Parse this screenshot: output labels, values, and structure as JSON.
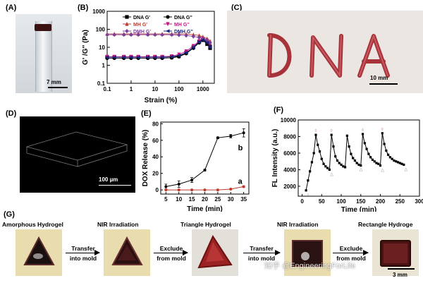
{
  "panels": {
    "A": {
      "label": "(A)",
      "scale_bar": "7 mm"
    },
    "B": {
      "label": "(B)"
    },
    "C": {
      "label": "(C)",
      "scale_bar": "10 mm",
      "written_text": "DNA"
    },
    "D": {
      "label": "(D)",
      "scale_bar": "100 µm"
    },
    "E": {
      "label": "(E)"
    },
    "F": {
      "label": "(F)"
    },
    "G": {
      "label": "(G)",
      "steps": [
        "Amorphous Hydrogel",
        "NIR Irradiation",
        "Triangle Hydrogel",
        "NIR Irradiation",
        "Rectangle Hydroge"
      ],
      "transitions": [
        {
          "line1": "Transfer",
          "line2": "into mold"
        },
        {
          "line1": "Exclude",
          "line2": "from mold"
        },
        {
          "line1": "Transfer",
          "line2": "into mold"
        },
        {
          "line1": "Exclude",
          "line2": "from mold"
        }
      ],
      "scale_bar": "3 mm",
      "watermark": "知乎 @EngineeringForLife"
    }
  },
  "chart_data": [
    {
      "id": "B",
      "type": "line",
      "xlabel": "Strain (%)",
      "ylabel": "G' /G'' (Pa)",
      "xscale": "log",
      "yscale": "log",
      "xlim": [
        0.1,
        3000
      ],
      "ylim": [
        0.1,
        1000
      ],
      "x_ticks": [
        "0.1",
        "1",
        "10",
        "100",
        "1000"
      ],
      "y_ticks": [
        "0.1",
        "1",
        "10",
        "100",
        "1000"
      ],
      "legend_position": "top",
      "series": [
        {
          "name": "DNA G'",
          "color": "#000000",
          "marker": "square",
          "x": [
            0.1,
            0.2,
            0.5,
            1,
            2,
            5,
            10,
            20,
            50,
            100,
            200,
            400,
            700,
            1000,
            1500,
            2000
          ],
          "y": [
            2.8,
            2.8,
            2.8,
            2.8,
            2.8,
            2.8,
            2.8,
            2.8,
            2.9,
            3.2,
            5,
            10,
            20,
            25,
            15,
            9
          ]
        },
        {
          "name": "DNA G''",
          "color": "#000000",
          "marker": "circle",
          "x": [
            0.1,
            0.2,
            0.5,
            1,
            2,
            5,
            10,
            20,
            50,
            100,
            200,
            400,
            700,
            1000,
            1500,
            2000
          ],
          "y": [
            2.5,
            2.5,
            2.5,
            2.5,
            2.5,
            2.5,
            2.5,
            2.5,
            2.6,
            3,
            4.5,
            9,
            18,
            28,
            20,
            12
          ]
        },
        {
          "name": "MH G'",
          "color": "#c0392b",
          "marker": "triangle-up",
          "x": [
            0.1,
            0.2,
            0.5,
            1,
            2,
            5,
            10,
            20,
            50,
            100,
            200,
            400,
            700,
            1000,
            1500,
            2000
          ],
          "y": [
            55,
            55,
            55,
            55,
            55,
            55,
            55,
            55,
            55,
            55,
            54,
            50,
            45,
            38,
            30,
            22
          ]
        },
        {
          "name": "MH G''",
          "color": "#c71585",
          "marker": "triangle-down",
          "x": [
            0.1,
            0.2,
            0.5,
            1,
            2,
            5,
            10,
            20,
            50,
            100,
            200,
            400,
            700,
            1000,
            1500,
            2000
          ],
          "y": [
            3,
            3,
            3,
            3,
            3,
            3,
            3,
            3,
            3.2,
            4,
            6,
            12,
            22,
            30,
            24,
            15
          ]
        },
        {
          "name": "DMH G'",
          "color": "#7b3fa0",
          "marker": "diamond",
          "x": [
            0.1,
            0.2,
            0.5,
            1,
            2,
            5,
            10,
            20,
            50,
            100,
            200,
            400,
            700,
            1000,
            1500,
            2000
          ],
          "y": [
            50,
            50,
            50,
            50,
            50,
            50,
            50,
            50,
            50,
            48,
            45,
            40,
            35,
            30,
            25,
            18
          ]
        },
        {
          "name": "DMH G''",
          "color": "#1a237e",
          "marker": "left-triangle",
          "x": [
            0.1,
            0.2,
            0.5,
            1,
            2,
            5,
            10,
            20,
            50,
            100,
            200,
            400,
            700,
            1000,
            1500,
            2000
          ],
          "y": [
            2.8,
            2.8,
            2.8,
            2.8,
            2.8,
            2.8,
            2.8,
            2.8,
            3,
            3.5,
            5,
            10,
            20,
            26,
            18,
            10
          ]
        }
      ]
    },
    {
      "id": "E",
      "type": "line",
      "xlabel": "Time (min)",
      "ylabel": "DOX Release (%)",
      "xlim": [
        3,
        37
      ],
      "ylim": [
        -5,
        82
      ],
      "x_ticks": [
        5,
        10,
        15,
        20,
        25,
        30,
        35
      ],
      "y_ticks": [
        0,
        20,
        40,
        60,
        80
      ],
      "series": [
        {
          "name": "b",
          "color": "#000000",
          "x": [
            5,
            10,
            15,
            20,
            25,
            30,
            35
          ],
          "y": [
            4,
            7,
            12,
            24,
            63,
            65,
            69
          ],
          "err": [
            3,
            4,
            3,
            1,
            1,
            2,
            5
          ]
        },
        {
          "name": "a",
          "color": "#c0392b",
          "x": [
            5,
            10,
            15,
            20,
            25,
            30,
            35
          ],
          "y": [
            0,
            0,
            0,
            0,
            0,
            1,
            4
          ],
          "err": [
            0,
            0,
            0,
            0,
            0,
            0,
            1
          ]
        }
      ]
    },
    {
      "id": "F",
      "type": "line",
      "xlabel": "Time (min)",
      "ylabel": "FL Intensity (a.u.)",
      "xlim": [
        -10,
        300
      ],
      "ylim": [
        800,
        10000
      ],
      "x_ticks": [
        "0",
        "50",
        "100",
        "150",
        "200",
        "250",
        "300"
      ],
      "y_ticks": [
        "2000",
        "4000",
        "6000",
        "8000",
        "10000"
      ],
      "series": [
        {
          "name": "FL",
          "color": "#000000",
          "x": [
            10,
            15,
            20,
            25,
            30,
            35,
            40,
            45,
            50,
            55,
            60,
            65,
            70,
            75,
            80,
            85,
            90,
            95,
            100,
            105,
            110,
            115,
            120,
            125,
            130,
            135,
            140,
            145,
            150,
            155,
            160,
            165,
            170,
            175,
            180,
            185,
            190,
            195,
            200,
            205,
            210,
            215,
            220,
            225,
            230,
            235,
            240,
            245,
            250,
            255,
            260
          ],
          "y": [
            1500,
            2700,
            3800,
            4900,
            6000,
            8200,
            7000,
            6200,
            5300,
            4700,
            4400,
            4200,
            4000,
            8200,
            6800,
            5600,
            5100,
            4800,
            4600,
            4400,
            4300,
            8100,
            6800,
            5900,
            5400,
            5100,
            4800,
            4600,
            4500,
            8300,
            7200,
            6500,
            5900,
            5500,
            5200,
            5000,
            4800,
            4700,
            4500,
            8400,
            7100,
            6300,
            5800,
            5500,
            5300,
            5100,
            5000,
            4900,
            4800,
            4700,
            4600
          ]
        }
      ],
      "peak_markers": [
        "◊",
        "◊",
        "◊",
        "◊"
      ],
      "trough_markers": [
        "△",
        "△",
        "△",
        "△",
        "△"
      ]
    }
  ]
}
